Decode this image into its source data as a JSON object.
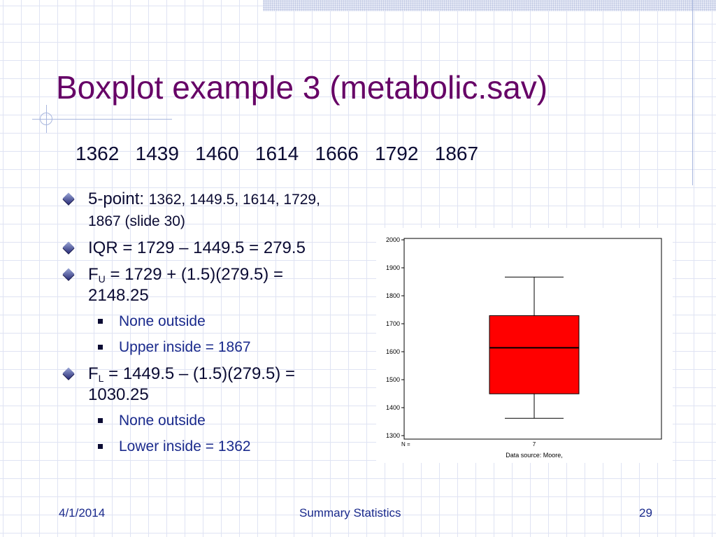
{
  "slide": {
    "title": "Boxplot example 3 (metabolic.sav)",
    "numbers": "1362   1439   1460   1614   1666   1792   1867",
    "bullets": [
      {
        "lead": "5-point: ",
        "text": "1362, 1449.5, 1614, 1729,",
        "text2": "1867 (slide 30)"
      },
      {
        "text": "IQR = 1729 – 1449.5 = 279.5"
      },
      {
        "pre": "F",
        "sub": "U",
        "post": " = 1729 + (1.5)(279.5) =",
        "text2": "2148.25"
      },
      {
        "text": "None outside"
      },
      {
        "text": "Upper inside = 1867"
      },
      {
        "pre": "F",
        "sub": "L",
        "post": " = 1449.5 – (1.5)(279.5) =",
        "text2": "1030.25"
      },
      {
        "text": "None outside"
      },
      {
        "text": "Lower inside = 1362"
      }
    ]
  },
  "footer": {
    "date": "4/1/2014",
    "center": "Summary Statistics",
    "page": "29"
  },
  "chart_data": {
    "type": "boxplot",
    "ylim": [
      1300,
      2000
    ],
    "yticks": [
      "2000",
      "1900",
      "1800",
      "1700",
      "1600",
      "1500",
      "1400",
      "1300"
    ],
    "n_label": "N =",
    "n_value": "7",
    "caption": "Data source: Moore,",
    "box": {
      "min": 1362,
      "q1": 1449.5,
      "median": 1614,
      "q3": 1729,
      "max": 1867
    },
    "box_color": "#ff0000"
  }
}
